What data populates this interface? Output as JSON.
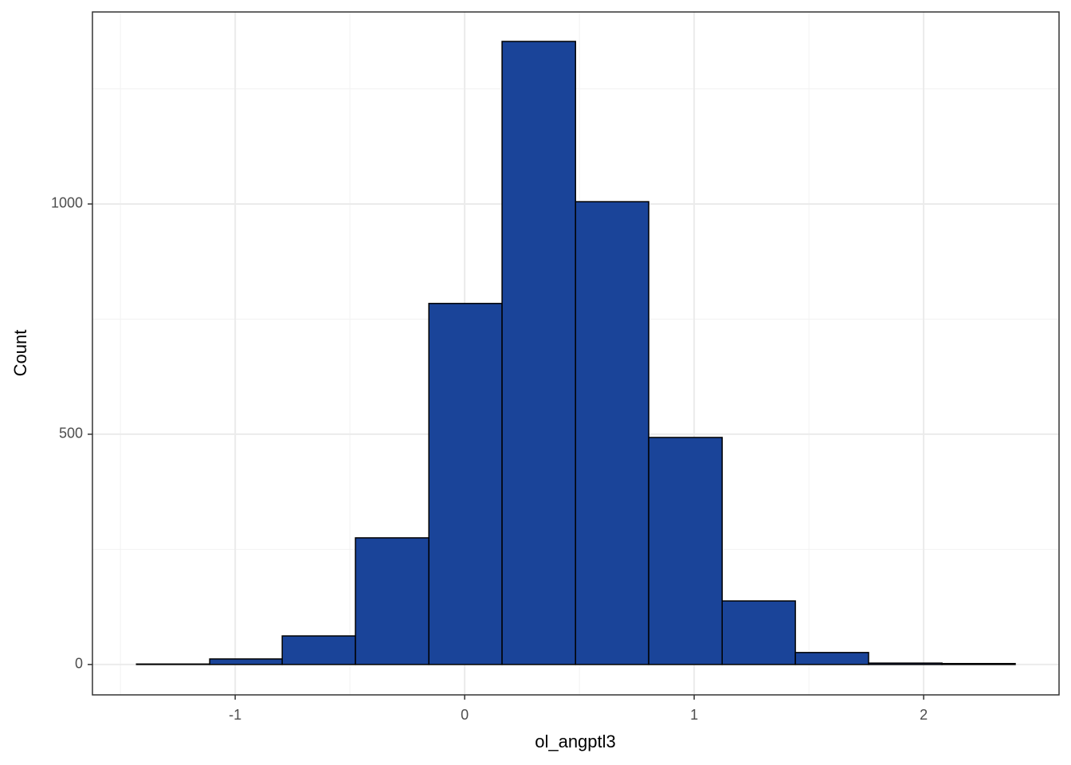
{
  "chart_data": {
    "type": "histogram",
    "xlabel": "ol_angptl3",
    "ylabel": "Count",
    "bins": [
      -1.43,
      -1.111,
      -0.795,
      -0.476,
      -0.156,
      0.163,
      0.483,
      0.802,
      1.122,
      1.441,
      1.76,
      2.08,
      2.399
    ],
    "values": [
      1,
      12,
      62,
      275,
      784,
      1353,
      1005,
      493,
      138,
      26,
      3,
      2
    ],
    "color": "#1a4499",
    "edgecolor": "#000000",
    "xlim": [
      -1.622,
      2.59
    ],
    "ylim": [
      -66,
      1417
    ],
    "xticks": [
      -1,
      0,
      1,
      2
    ],
    "yticks": [
      0,
      500,
      1000
    ],
    "x_minor_grid": [
      -1.5,
      -0.5,
      0.5,
      1.5
    ],
    "y_minor_grid": [
      250,
      750,
      1250
    ],
    "grid": true
  }
}
